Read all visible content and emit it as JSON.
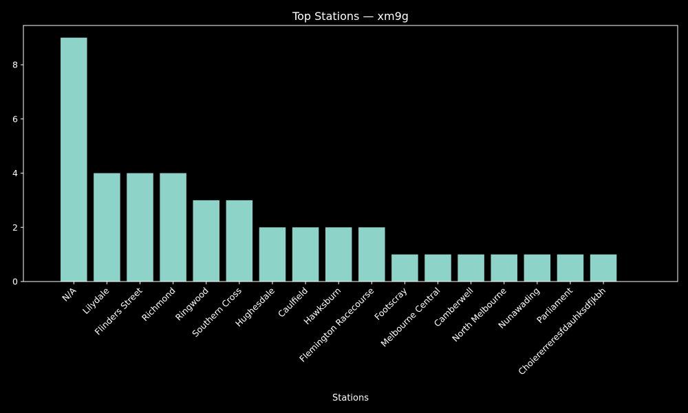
{
  "chart_data": {
    "type": "bar",
    "title": "Top Stations — xm9g",
    "xlabel": "Stations",
    "ylabel": "",
    "categories": [
      "N/A",
      "Lilydale",
      "Flinders Street",
      "Richmond",
      "Ringwood",
      "Southern Cross",
      "Hughesdale",
      "Caulfield",
      "Hawksburn",
      "Flemington Racecourse",
      "Footscray",
      "Melbourne Central",
      "Camberwell",
      "North Melbourne",
      "Nunawading",
      "Parliament",
      "Choiererreresfdauhksdfjkbh"
    ],
    "values": [
      9,
      4,
      4,
      4,
      3,
      3,
      2,
      2,
      2,
      2,
      1,
      1,
      1,
      1,
      1,
      1,
      1
    ],
    "ylim": [
      0,
      9.45
    ],
    "yticks": [
      0,
      2,
      4,
      6,
      8
    ],
    "grid": false,
    "colors": {
      "bar": "#8dd3c7",
      "background": "#000000",
      "axes": "#ffffff",
      "text": "#ffffff"
    }
  }
}
